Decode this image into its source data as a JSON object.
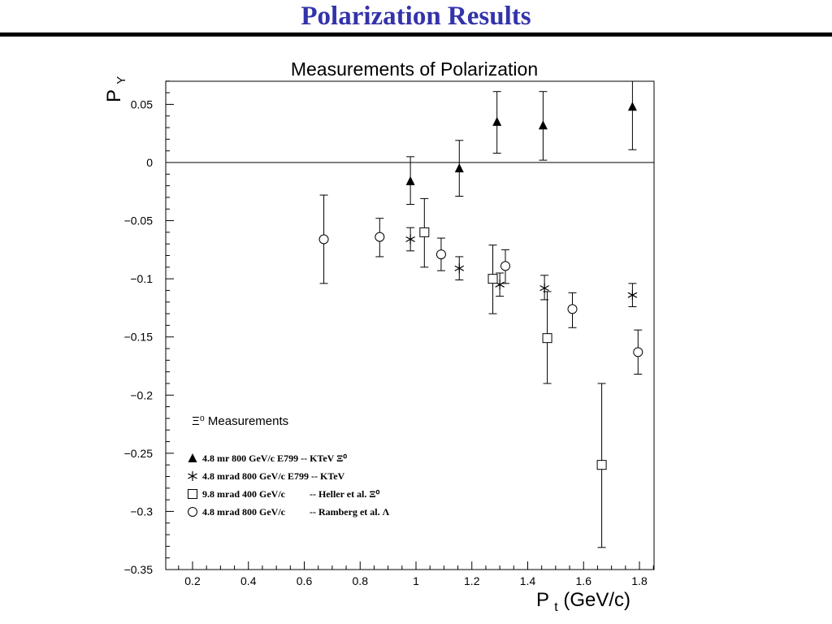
{
  "slide": {
    "title": "Polarization Results"
  },
  "chart_data": {
    "type": "scatter",
    "title": "Measurements of Polarization",
    "xlabel_main": "P",
    "xlabel_sub": "t",
    "xlabel_unit": " (GeV/c)",
    "ylabel_main": "P",
    "ylabel_sub": "Y",
    "xlim": [
      0.1,
      1.85
    ],
    "ylim": [
      -0.35,
      0.07
    ],
    "x_ticks": [
      0.2,
      0.4,
      0.6,
      0.8,
      1.0,
      1.2,
      1.4,
      1.6,
      1.8
    ],
    "x_tick_labels": [
      "0.2",
      "0.4",
      "0.6",
      "0.8",
      "1",
      "1.2",
      "1.4",
      "1.6",
      "1.8"
    ],
    "y_ticks": [
      0.05,
      0,
      -0.05,
      -0.1,
      -0.15,
      -0.2,
      -0.25,
      -0.3,
      -0.35
    ],
    "y_tick_labels": [
      "0.05",
      "0",
      "−0.05",
      "−0.1",
      "−0.15",
      "−0.2",
      "−0.25",
      "−0.3",
      "−0.35"
    ],
    "reference_line_y": 0,
    "grid": false,
    "legend": {
      "heading": "Ξ⁰ Measurements",
      "placement": "bottom-left",
      "entries": [
        {
          "marker": "triangle",
          "label": "4.8 mr 800 GeV/c E799 -- KTeV Ξ⁰"
        },
        {
          "marker": "asterisk",
          "label": "4.8 mrad 800 GeV/c E799 -- KTeV"
        },
        {
          "marker": "square",
          "label": "9.8 mrad 400 GeV/c          -- Heller et al. Ξ⁰"
        },
        {
          "marker": "circle",
          "label": "4.8 mrad 800 GeV/c          -- Ramberg et al. Λ"
        }
      ]
    },
    "series": [
      {
        "marker": "triangle",
        "points": [
          {
            "x": 0.98,
            "y": -0.016,
            "lo": -0.036,
            "hi": 0.005
          },
          {
            "x": 1.155,
            "y": -0.005,
            "lo": -0.029,
            "hi": 0.019
          },
          {
            "x": 1.29,
            "y": 0.035,
            "lo": 0.008,
            "hi": 0.061
          },
          {
            "x": 1.455,
            "y": 0.032,
            "lo": 0.002,
            "hi": 0.061
          },
          {
            "x": 1.775,
            "y": 0.048,
            "lo": 0.011,
            "hi": 0.07
          }
        ]
      },
      {
        "marker": "asterisk",
        "points": [
          {
            "x": 0.98,
            "y": -0.066,
            "lo": -0.076,
            "hi": -0.056
          },
          {
            "x": 1.155,
            "y": -0.091,
            "lo": -0.101,
            "hi": -0.081
          },
          {
            "x": 1.3,
            "y": -0.105,
            "lo": -0.115,
            "hi": -0.095
          },
          {
            "x": 1.46,
            "y": -0.108,
            "lo": -0.118,
            "hi": -0.097
          },
          {
            "x": 1.775,
            "y": -0.114,
            "lo": -0.124,
            "hi": -0.104
          }
        ]
      },
      {
        "marker": "square",
        "points": [
          {
            "x": 1.03,
            "y": -0.06,
            "lo": -0.09,
            "hi": -0.031
          },
          {
            "x": 1.275,
            "y": -0.1,
            "lo": -0.13,
            "hi": -0.071
          },
          {
            "x": 1.47,
            "y": -0.151,
            "lo": -0.19,
            "hi": -0.111
          },
          {
            "x": 1.665,
            "y": -0.26,
            "lo": -0.331,
            "hi": -0.19
          }
        ]
      },
      {
        "marker": "circle",
        "points": [
          {
            "x": 0.67,
            "y": -0.066,
            "lo": -0.104,
            "hi": -0.028
          },
          {
            "x": 0.87,
            "y": -0.064,
            "lo": -0.081,
            "hi": -0.048
          },
          {
            "x": 1.09,
            "y": -0.079,
            "lo": -0.093,
            "hi": -0.065
          },
          {
            "x": 1.32,
            "y": -0.089,
            "lo": -0.104,
            "hi": -0.075
          },
          {
            "x": 1.56,
            "y": -0.126,
            "lo": -0.142,
            "hi": -0.112
          },
          {
            "x": 1.795,
            "y": -0.163,
            "lo": -0.182,
            "hi": -0.144
          }
        ]
      }
    ]
  }
}
